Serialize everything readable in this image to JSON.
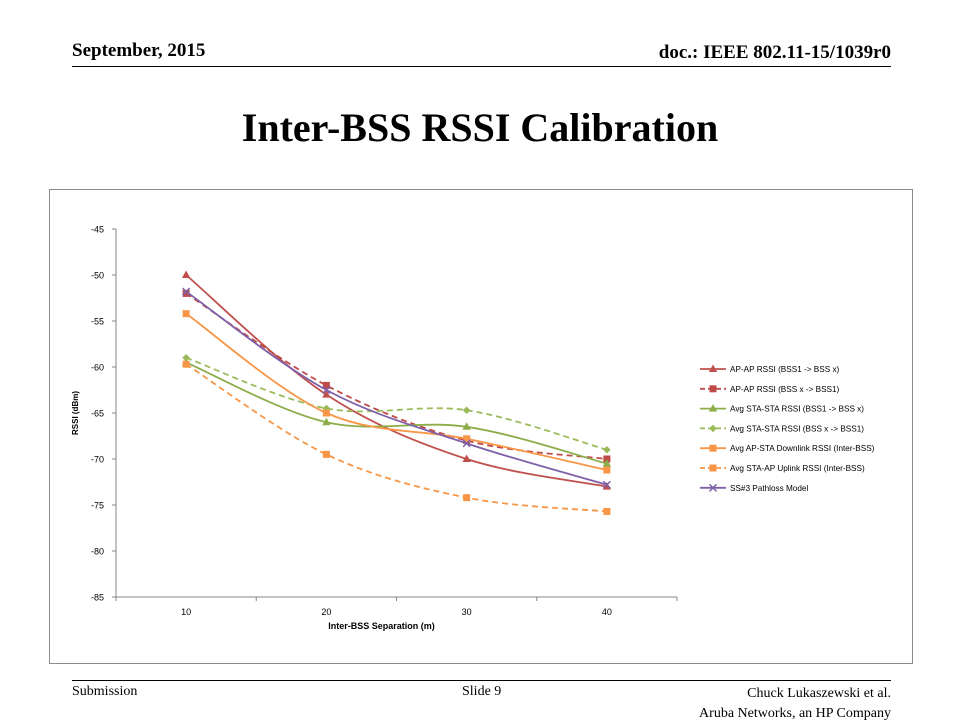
{
  "header": {
    "date": "September, 2015",
    "doc": "doc.: IEEE 802.11-15/1039r0"
  },
  "title": "Inter-BSS RSSI Calibration",
  "footer": {
    "left": "Submission",
    "center": "Slide 9",
    "right_line1": "Chuck Lukaszewski et al.",
    "right_line2": "Aruba Networks, an HP Company"
  },
  "chart_data": {
    "type": "line",
    "xlabel": "Inter-BSS Separation (m)",
    "ylabel": "RSSI (dBm)",
    "categories": [
      10,
      20,
      30,
      40
    ],
    "y_ticks": [
      -45,
      -50,
      -55,
      -60,
      -65,
      -70,
      -75,
      -80,
      -85
    ],
    "ylim": [
      -85,
      -45
    ],
    "legend_position": "right",
    "grid": false,
    "series": [
      {
        "name": "AP-AP RSSI (BSS1 -> BSS x)",
        "values": [
          -50,
          -63,
          -70,
          -73
        ],
        "color": "#c0504d",
        "dashed": false,
        "marker": "triangle"
      },
      {
        "name": "AP-AP RSSI (BSS x -> BSS1)",
        "values": [
          -52,
          -62,
          -68,
          -70
        ],
        "color": "#be4b48",
        "dashed": true,
        "marker": "square"
      },
      {
        "name": "Avg STA-STA RSSI (BSS1 -> BSS x)",
        "values": [
          -59.5,
          -66,
          -66.5,
          -70.5
        ],
        "color": "#8cad4a",
        "dashed": false,
        "marker": "triangle"
      },
      {
        "name": "Avg STA-STA RSSI (BSS x -> BSS1)",
        "values": [
          -59,
          -64.5,
          -64.7,
          -69
        ],
        "color": "#9bbb59",
        "dashed": true,
        "marker": "diamond"
      },
      {
        "name": "Avg AP-STA Downlink RSSI (Inter-BSS)",
        "values": [
          -54.2,
          -65,
          -67.8,
          -71.2
        ],
        "color": "#f79646",
        "dashed": false,
        "marker": "square"
      },
      {
        "name": "Avg STA-AP Uplink RSSI (Inter-BSS)",
        "values": [
          -59.7,
          -69.5,
          -74.2,
          -75.7
        ],
        "color": "#f79646",
        "dashed": true,
        "marker": "square"
      },
      {
        "name": "SS#3 Pathloss Model",
        "values": [
          -51.8,
          -62.5,
          -68.3,
          -72.8
        ],
        "color": "#7f60a8",
        "dashed": false,
        "marker": "x"
      }
    ]
  }
}
